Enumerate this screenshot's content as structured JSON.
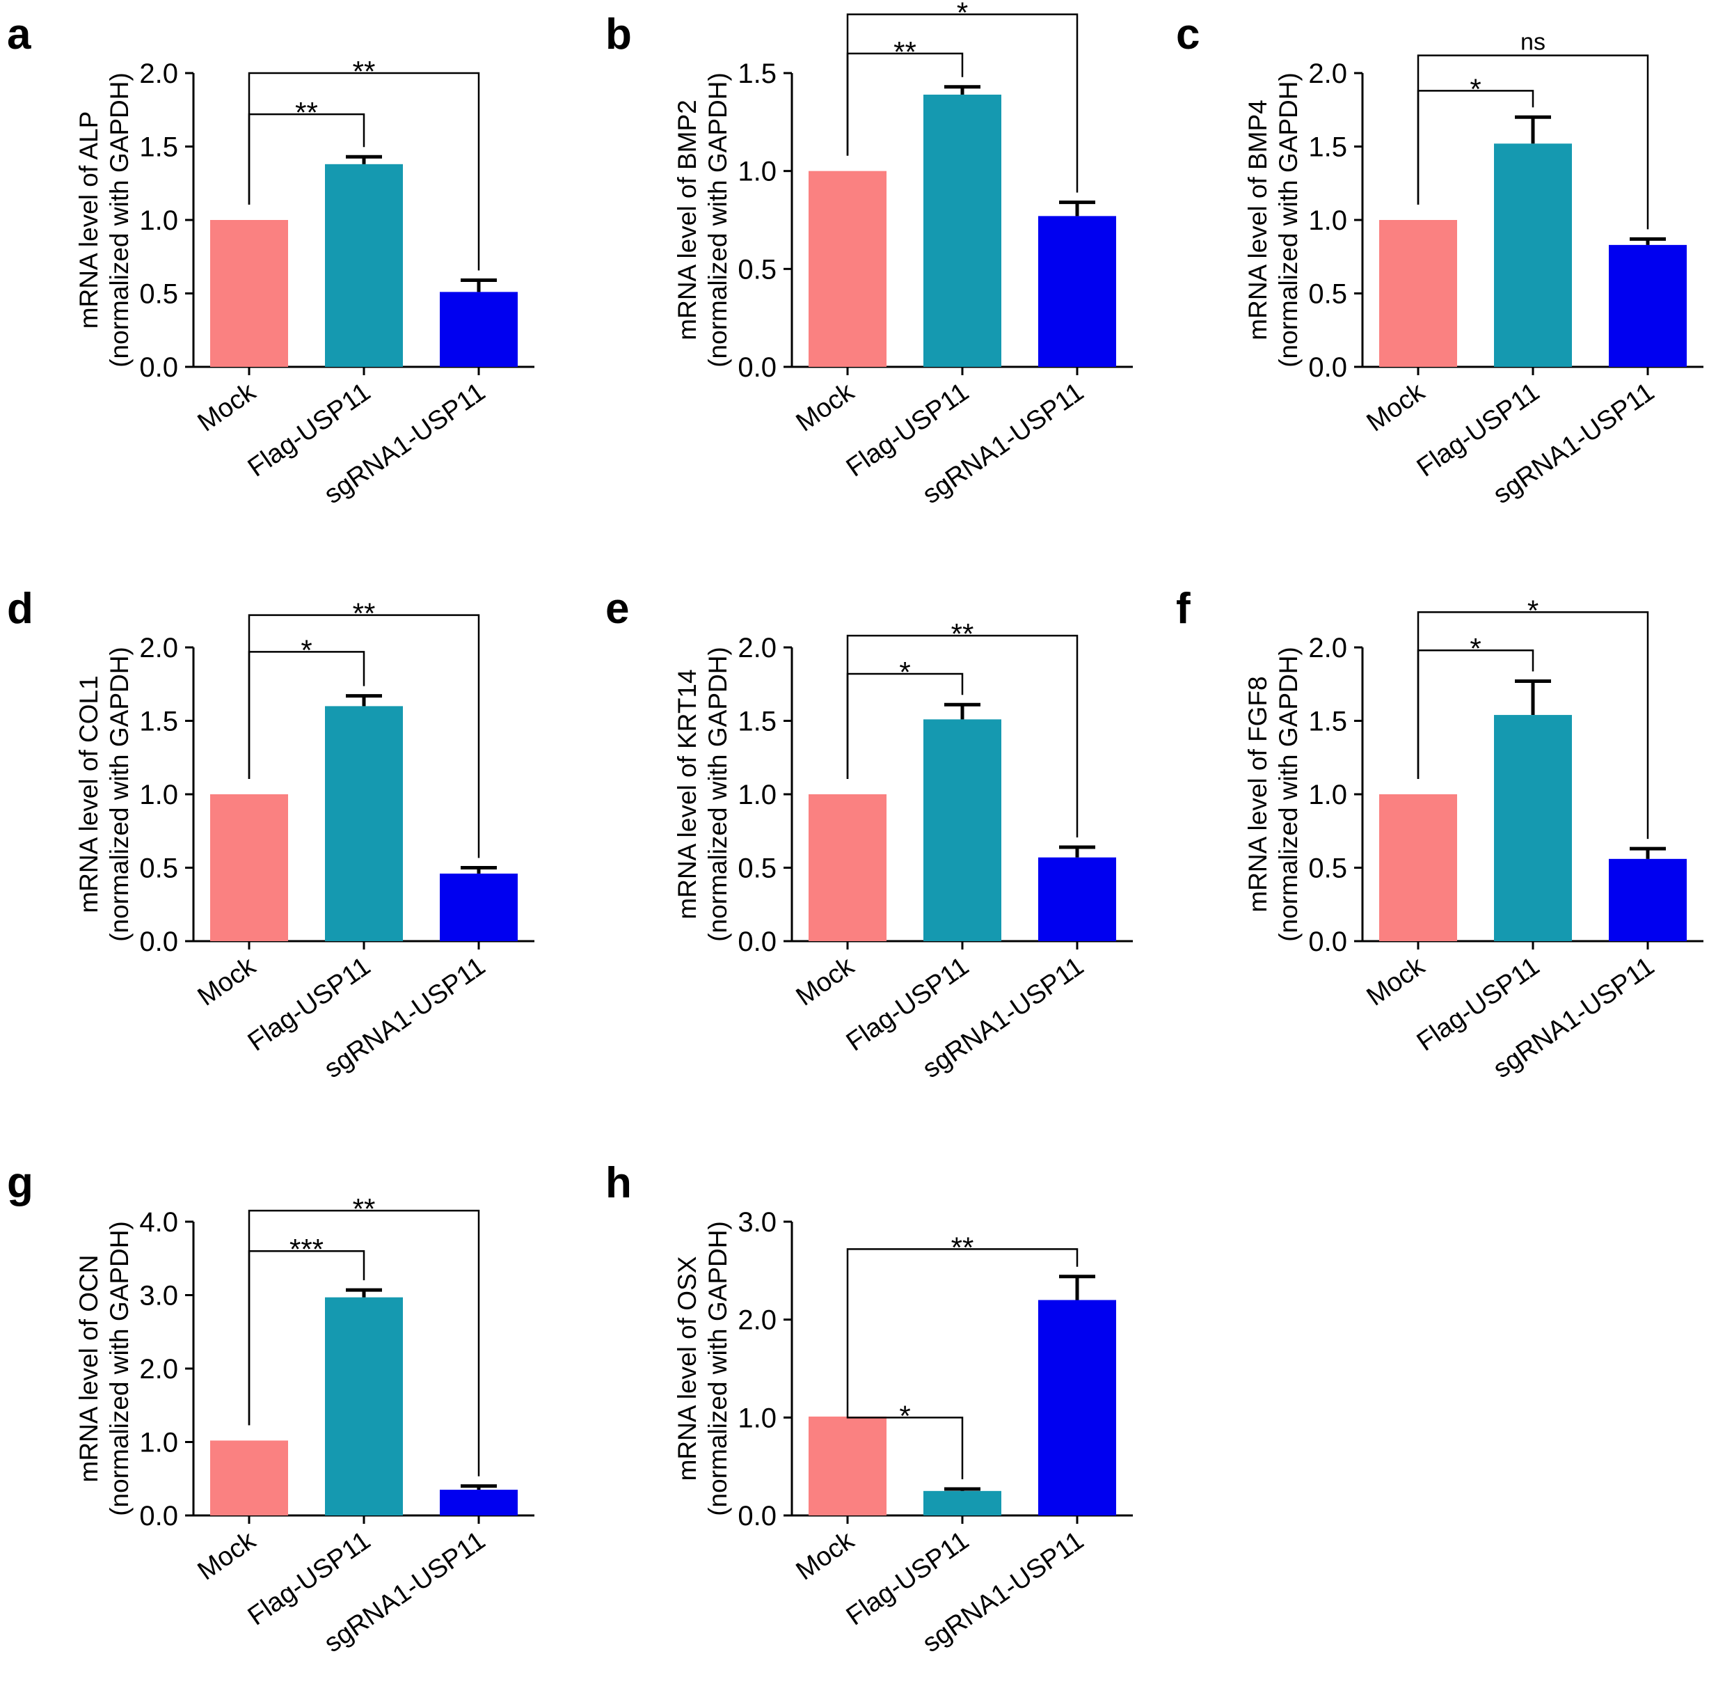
{
  "chart_data": [
    {
      "panel": "a",
      "type": "bar",
      "ylabel_line1": "mRNA level of ALP",
      "ylabel_line2": "(normalized with GAPDH)",
      "categories": [
        "Mock",
        "Flag-USP11",
        "sgRNA1-USP11"
      ],
      "values": [
        1.0,
        1.38,
        0.51
      ],
      "errors": [
        0.0,
        0.05,
        0.08
      ],
      "yticks": [
        "0.0",
        "0.5",
        "1.0",
        "1.5",
        "2.0"
      ],
      "ylim": [
        0,
        2.0
      ],
      "colors": [
        "#FA8181",
        "#1599B0",
        "#0000F0"
      ],
      "significance": [
        {
          "from": 0,
          "to": 1,
          "label": "**",
          "level": 1.72
        },
        {
          "from": 0,
          "to": 2,
          "label": "**",
          "level": 2.0
        }
      ]
    },
    {
      "panel": "b",
      "type": "bar",
      "ylabel_line1": "mRNA level of BMP2",
      "ylabel_line2": "(normalized with GAPDH)",
      "categories": [
        "Mock",
        "Flag-USP11",
        "sgRNA1-USP11"
      ],
      "values": [
        1.0,
        1.39,
        0.77
      ],
      "errors": [
        0.0,
        0.04,
        0.07
      ],
      "yticks": [
        "0.0",
        "0.5",
        "1.0",
        "1.5"
      ],
      "ylim": [
        0,
        1.5
      ],
      "colors": [
        "#FA8181",
        "#1599B0",
        "#0000F0"
      ],
      "significance": [
        {
          "from": 0,
          "to": 1,
          "label": "**",
          "level": 1.6
        },
        {
          "from": 0,
          "to": 2,
          "label": "*",
          "level": 1.8
        }
      ]
    },
    {
      "panel": "c",
      "type": "bar",
      "ylabel_line1": "mRNA level of BMP4",
      "ylabel_line2": "(normalized with GAPDH)",
      "categories": [
        "Mock",
        "Flag-USP11",
        "sgRNA1-USP11"
      ],
      "values": [
        1.0,
        1.52,
        0.83
      ],
      "errors": [
        0.0,
        0.18,
        0.04
      ],
      "yticks": [
        "0.0",
        "0.5",
        "1.0",
        "1.5",
        "2.0"
      ],
      "ylim": [
        0,
        2.0
      ],
      "colors": [
        "#FA8181",
        "#1599B0",
        "#0000F0"
      ],
      "significance": [
        {
          "from": 0,
          "to": 1,
          "label": "*",
          "level": 1.88
        },
        {
          "from": 0,
          "to": 2,
          "label": "ns",
          "level": 2.12
        }
      ]
    },
    {
      "panel": "d",
      "type": "bar",
      "ylabel_line1": "mRNA level of COL1",
      "ylabel_line2": "(normalized with GAPDH)",
      "categories": [
        "Mock",
        "Flag-USP11",
        "sgRNA1-USP11"
      ],
      "values": [
        1.0,
        1.6,
        0.46
      ],
      "errors": [
        0.0,
        0.07,
        0.04
      ],
      "yticks": [
        "0.0",
        "0.5",
        "1.0",
        "1.5",
        "2.0"
      ],
      "ylim": [
        0,
        2.0
      ],
      "colors": [
        "#FA8181",
        "#1599B0",
        "#0000F0"
      ],
      "significance": [
        {
          "from": 0,
          "to": 1,
          "label": "*",
          "level": 1.97
        },
        {
          "from": 0,
          "to": 2,
          "label": "**",
          "level": 2.22
        }
      ]
    },
    {
      "panel": "e",
      "type": "bar",
      "ylabel_line1": "mRNA level of  KRT14",
      "ylabel_line2": "(normalized with GAPDH)",
      "categories": [
        "Mock",
        "Flag-USP11",
        "sgRNA1-USP11"
      ],
      "values": [
        1.0,
        1.51,
        0.57
      ],
      "errors": [
        0.0,
        0.1,
        0.07
      ],
      "yticks": [
        "0.0",
        "0.5",
        "1.0",
        "1.5",
        "2.0"
      ],
      "ylim": [
        0,
        2.0
      ],
      "colors": [
        "#FA8181",
        "#1599B0",
        "#0000F0"
      ],
      "significance": [
        {
          "from": 0,
          "to": 1,
          "label": "*",
          "level": 1.82
        },
        {
          "from": 0,
          "to": 2,
          "label": "**",
          "level": 2.08
        }
      ]
    },
    {
      "panel": "f",
      "type": "bar",
      "ylabel_line1": "mRNA level of FGF8",
      "ylabel_line2": "(normalized with GAPDH)",
      "categories": [
        "Mock",
        "Flag-USP11",
        "sgRNA1-USP11"
      ],
      "values": [
        1.0,
        1.54,
        0.56
      ],
      "errors": [
        0.0,
        0.23,
        0.07
      ],
      "yticks": [
        "0.0",
        "0.5",
        "1.0",
        "1.5",
        "2.0"
      ],
      "ylim": [
        0,
        2.0
      ],
      "colors": [
        "#FA8181",
        "#1599B0",
        "#0000F0"
      ],
      "significance": [
        {
          "from": 0,
          "to": 1,
          "label": "*",
          "level": 1.98
        },
        {
          "from": 0,
          "to": 2,
          "label": "*",
          "level": 2.24
        }
      ]
    },
    {
      "panel": "g",
      "type": "bar",
      "ylabel_line1": "mRNA level of OCN",
      "ylabel_line2": "(normalized with GAPDH)",
      "categories": [
        "Mock",
        "Flag-USP11",
        "sgRNA1-USP11"
      ],
      "values": [
        1.02,
        2.97,
        0.35
      ],
      "errors": [
        0.0,
        0.1,
        0.05
      ],
      "yticks": [
        "0.0",
        "1.0",
        "2.0",
        "3.0",
        "4.0"
      ],
      "ylim": [
        0,
        4.0
      ],
      "colors": [
        "#FA8181",
        "#1599B0",
        "#0000F0"
      ],
      "significance": [
        {
          "from": 0,
          "to": 1,
          "label": "***",
          "level": 3.6
        },
        {
          "from": 0,
          "to": 2,
          "label": "**",
          "level": 4.15
        }
      ]
    },
    {
      "panel": "h",
      "type": "bar",
      "ylabel_line1": "mRNA level of OSX",
      "ylabel_line2": "(normalized with GAPDH)",
      "categories": [
        "Mock",
        "Flag-USP11",
        "sgRNA1-USP11"
      ],
      "values": [
        1.01,
        0.25,
        2.2
      ],
      "errors": [
        0.0,
        0.02,
        0.24
      ],
      "yticks": [
        "0.0",
        "1.0",
        "2.0",
        "3.0"
      ],
      "ylim": [
        0,
        3.0
      ],
      "colors": [
        "#FA8181",
        "#1599B0",
        "#0000F0"
      ],
      "significance": [
        {
          "from": 0,
          "to": 1,
          "label": "*",
          "level": 1.0
        },
        {
          "from": 0,
          "to": 2,
          "label": "**",
          "level": 2.72
        }
      ]
    }
  ]
}
